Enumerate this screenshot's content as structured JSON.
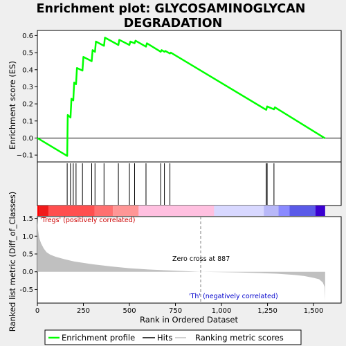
{
  "title_line1": "Enrichment plot: GLYCOSAMINOGLYCAN",
  "title_line2": "DEGRADATION",
  "colors": {
    "background": "#efefef",
    "plot_background": "#ffffff",
    "enrichment": "#00ff00",
    "hits": "#000000",
    "metric": "#c0c0c0",
    "zero_line": "#808080",
    "axis": "#000000"
  },
  "chart_data": [
    {
      "name": "enrichment-profile",
      "type": "line",
      "ylabel": "Enrichment score (ES)",
      "xlim": [
        0,
        1650
      ],
      "ylim": [
        -0.14,
        0.63
      ],
      "yticks": [
        -0.1,
        0.0,
        0.1,
        0.2,
        0.3,
        0.4,
        0.5,
        0.6
      ],
      "ytick_labels": [
        "−0.1",
        "0.0",
        "0.1",
        "0.2",
        "0.3",
        "0.4",
        "0.5",
        "0.6"
      ],
      "x": [
        0,
        162,
        165,
        180,
        185,
        195,
        200,
        210,
        215,
        245,
        250,
        295,
        300,
        313,
        318,
        362,
        367,
        440,
        445,
        500,
        505,
        528,
        533,
        590,
        595,
        670,
        675,
        690,
        695,
        720,
        725,
        1243,
        1248,
        1285,
        1290,
        1563
      ],
      "y": [
        0.0,
        -0.105,
        0.135,
        0.12,
        0.23,
        0.22,
        0.325,
        0.315,
        0.41,
        0.395,
        0.475,
        0.45,
        0.515,
        0.505,
        0.565,
        0.54,
        0.588,
        0.545,
        0.575,
        0.545,
        0.565,
        0.555,
        0.57,
        0.535,
        0.555,
        0.505,
        0.515,
        0.505,
        0.51,
        0.495,
        0.5,
        0.165,
        0.185,
        0.168,
        0.18,
        -0.002
      ]
    },
    {
      "name": "hits",
      "type": "scatter",
      "x": [
        162,
        180,
        195,
        210,
        245,
        295,
        313,
        362,
        440,
        500,
        528,
        590,
        670,
        690,
        720,
        1243,
        1248,
        1285
      ]
    },
    {
      "name": "ranking-metric",
      "type": "area",
      "xlabel": "Rank in Ordered Dataset",
      "ylabel": "Ranked list metric (Diff_of_Classes)",
      "xlim": [
        0,
        1650
      ],
      "ylim": [
        -0.88,
        1.55
      ],
      "xticks": [
        0,
        250,
        500,
        750,
        1000,
        1250,
        1500
      ],
      "xtick_labels": [
        "0",
        "250",
        "500",
        "750",
        "1,000",
        "1,250",
        "1,500"
      ],
      "yticks": [
        -0.5,
        0.0,
        0.5,
        1.0,
        1.5
      ],
      "ytick_labels": [
        "-0.5",
        "0.0",
        "0.5",
        "1.0",
        "1.5"
      ],
      "x": [
        0,
        3,
        10,
        20,
        35,
        50,
        70,
        100,
        150,
        200,
        300,
        400,
        500,
        600,
        700,
        800,
        887,
        1000,
        1100,
        1200,
        1300,
        1400,
        1450,
        1500,
        1530,
        1550,
        1560,
        1563
      ],
      "y": [
        1.5,
        1.2,
        0.95,
        0.8,
        0.65,
        0.55,
        0.48,
        0.42,
        0.35,
        0.29,
        0.21,
        0.15,
        0.1,
        0.065,
        0.04,
        0.02,
        0.0,
        -0.01,
        -0.02,
        -0.035,
        -0.055,
        -0.09,
        -0.12,
        -0.17,
        -0.21,
        -0.3,
        -0.42,
        -0.82
      ]
    }
  ],
  "labels": {
    "positive": "'Tregs' (positively correlated)",
    "negative": "'Th' (negatively correlated)",
    "zero_cross": "Zero cross at 887"
  },
  "zero_cross_rank": 887,
  "total_rank": 1563,
  "legend": {
    "enrichment": "Enrichment profile",
    "hits": "Hits",
    "metric": "Ranking metric scores"
  },
  "color_band": [
    {
      "from": 0,
      "to": 10,
      "color": "#ff0000"
    },
    {
      "from": 10,
      "to": 60,
      "color": "#f01a1a"
    },
    {
      "from": 60,
      "to": 310,
      "color": "#ff4f4f"
    },
    {
      "from": 310,
      "to": 410,
      "color": "#ff7070"
    },
    {
      "from": 410,
      "to": 550,
      "color": "#ff9696"
    },
    {
      "from": 550,
      "to": 960,
      "color": "#ffc0e0"
    },
    {
      "from": 960,
      "to": 1230,
      "color": "#d8d8ff"
    },
    {
      "from": 1230,
      "to": 1310,
      "color": "#b8b8f8"
    },
    {
      "from": 1310,
      "to": 1370,
      "color": "#8a8aff"
    },
    {
      "from": 1370,
      "to": 1510,
      "color": "#5a5ae8"
    },
    {
      "from": 1510,
      "to": 1563,
      "color": "#3a00d0"
    }
  ]
}
